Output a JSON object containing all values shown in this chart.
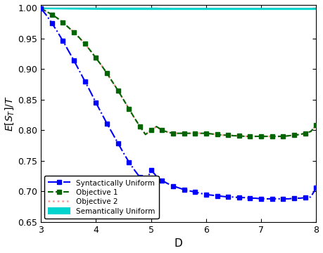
{
  "title": "",
  "xlabel": "D",
  "ylabel": "E[S$_T$]/T",
  "xlim": [
    3,
    8
  ],
  "ylim": [
    0.65,
    1.005
  ],
  "yticks": [
    0.65,
    0.7,
    0.75,
    0.8,
    0.85,
    0.9,
    0.95,
    1.0
  ],
  "xticks": [
    3,
    4,
    5,
    6,
    7,
    8
  ],
  "x": [
    3.0,
    3.1,
    3.2,
    3.3,
    3.4,
    3.5,
    3.6,
    3.7,
    3.8,
    3.9,
    4.0,
    4.1,
    4.2,
    4.3,
    4.4,
    4.5,
    4.6,
    4.7,
    4.8,
    4.9,
    5.0,
    5.1,
    5.2,
    5.3,
    5.4,
    5.5,
    5.6,
    5.7,
    5.8,
    5.9,
    6.0,
    6.1,
    6.2,
    6.3,
    6.4,
    6.5,
    6.6,
    6.7,
    6.8,
    6.9,
    7.0,
    7.1,
    7.2,
    7.3,
    7.4,
    7.5,
    7.6,
    7.7,
    7.8,
    7.9,
    8.0
  ],
  "syntactic_uniform": [
    0.999,
    0.988,
    0.975,
    0.961,
    0.946,
    0.93,
    0.914,
    0.897,
    0.88,
    0.863,
    0.845,
    0.828,
    0.811,
    0.795,
    0.779,
    0.763,
    0.748,
    0.735,
    0.723,
    0.713,
    0.735,
    0.725,
    0.718,
    0.713,
    0.709,
    0.706,
    0.703,
    0.701,
    0.699,
    0.697,
    0.695,
    0.694,
    0.693,
    0.692,
    0.691,
    0.691,
    0.69,
    0.69,
    0.689,
    0.689,
    0.688,
    0.688,
    0.688,
    0.688,
    0.688,
    0.688,
    0.689,
    0.689,
    0.69,
    0.691,
    0.706
  ],
  "objective1": [
    0.999,
    0.994,
    0.989,
    0.983,
    0.976,
    0.968,
    0.96,
    0.951,
    0.941,
    0.93,
    0.918,
    0.906,
    0.893,
    0.879,
    0.865,
    0.85,
    0.835,
    0.82,
    0.806,
    0.793,
    0.8,
    0.806,
    0.8,
    0.797,
    0.795,
    0.795,
    0.795,
    0.795,
    0.795,
    0.795,
    0.795,
    0.794,
    0.793,
    0.792,
    0.792,
    0.791,
    0.791,
    0.79,
    0.79,
    0.79,
    0.79,
    0.79,
    0.79,
    0.79,
    0.79,
    0.791,
    0.792,
    0.793,
    0.795,
    0.798,
    0.808
  ],
  "objective2": [
    0.999,
    0.994,
    0.989,
    0.983,
    0.976,
    0.968,
    0.96,
    0.951,
    0.941,
    0.93,
    0.918,
    0.906,
    0.893,
    0.879,
    0.865,
    0.85,
    0.835,
    0.82,
    0.806,
    0.793,
    0.8,
    0.806,
    0.8,
    0.797,
    0.795,
    0.795,
    0.795,
    0.795,
    0.795,
    0.795,
    0.795,
    0.794,
    0.793,
    0.792,
    0.792,
    0.791,
    0.791,
    0.79,
    0.79,
    0.79,
    0.79,
    0.79,
    0.79,
    0.79,
    0.79,
    0.791,
    0.792,
    0.793,
    0.795,
    0.798,
    0.808
  ],
  "semantic_upper": [
    1.0,
    1.0,
    1.0,
    1.0,
    1.0,
    1.0,
    1.0,
    1.0,
    1.0,
    1.0,
    1.0,
    1.0,
    1.0,
    1.0,
    1.0,
    1.0,
    1.0,
    1.0,
    1.0,
    1.0,
    1.0,
    1.0,
    0.9997,
    0.9997,
    0.9996,
    0.9996,
    0.9996,
    0.9996,
    0.9996,
    0.9996,
    0.9996,
    0.9996,
    0.9996,
    0.9996,
    0.9996,
    0.9996,
    0.9996,
    0.9996,
    0.9996,
    0.9996,
    0.9996,
    0.9996,
    0.9996,
    0.9996,
    0.9996,
    0.9996,
    0.9996,
    0.9996,
    0.9996,
    0.9996,
    0.9996
  ],
  "semantic_lower": [
    0.999,
    0.999,
    0.9988,
    0.9987,
    0.9986,
    0.9985,
    0.9984,
    0.9983,
    0.9982,
    0.9981,
    0.998,
    0.9979,
    0.9978,
    0.9978,
    0.9978,
    0.9978,
    0.9978,
    0.9978,
    0.9978,
    0.9978,
    0.9978,
    0.9978,
    0.9978,
    0.9978,
    0.9978,
    0.9978,
    0.9978,
    0.9978,
    0.9978,
    0.9978,
    0.9978,
    0.9978,
    0.9978,
    0.9978,
    0.9978,
    0.9978,
    0.9978,
    0.9978,
    0.9978,
    0.9978,
    0.9978,
    0.9978,
    0.9978,
    0.9978,
    0.9978,
    0.9978,
    0.9978,
    0.9978,
    0.9978,
    0.9978,
    0.9978
  ],
  "color_syntactic": "#0000FF",
  "color_obj1": "#006400",
  "color_obj2": "#FF9999",
  "color_semantic": "#00D4CC",
  "bg_color": "#FFFFFF",
  "legend_labels": [
    "Syntactically Uniform",
    "Objective 1",
    "Objective 2",
    "Semantically Uniform"
  ]
}
